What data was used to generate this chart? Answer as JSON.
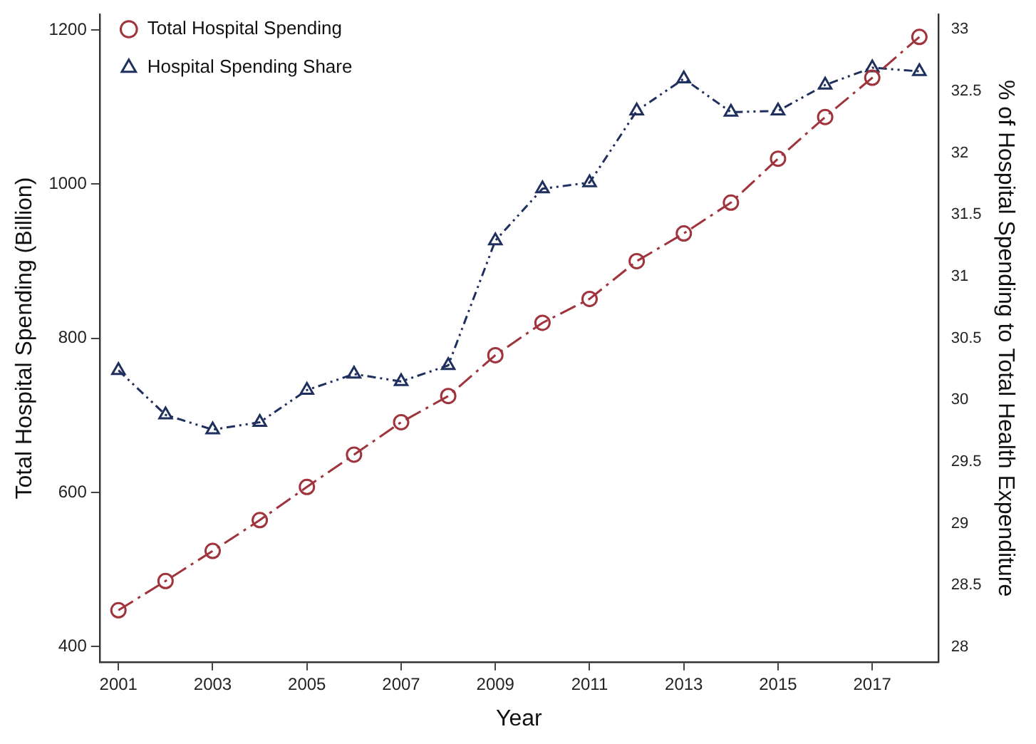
{
  "chart_data": {
    "type": "line",
    "xlabel": "Year",
    "ylabel": "Total Hospital Spending (Billion)",
    "y2label": "% of Hospital Spending to Total Health Expenditure",
    "x": [
      2001,
      2002,
      2003,
      2004,
      2005,
      2006,
      2007,
      2008,
      2009,
      2010,
      2011,
      2012,
      2013,
      2014,
      2015,
      2016,
      2017,
      2018
    ],
    "series": [
      {
        "name": "Total Hospital Spending",
        "color": "#a0343c",
        "marker": "circle",
        "line_style": "dashed",
        "values": [
          447,
          485,
          524,
          564,
          607,
          649,
          691,
          725,
          778,
          820,
          851,
          900,
          936,
          976,
          1033,
          1087,
          1138,
          1191
        ]
      },
      {
        "name": "Hospital Spending Share",
        "color": "#1f2f5e",
        "marker": "triangle",
        "line_style": "dotted",
        "axis": "y2",
        "values": [
          30.24,
          29.88,
          29.76,
          29.82,
          30.08,
          30.21,
          30.15,
          30.28,
          31.29,
          31.71,
          31.76,
          32.34,
          32.6,
          32.33,
          32.34,
          32.55,
          32.69,
          32.66
        ]
      }
    ],
    "xlim": [
      2000.6,
      2018.4
    ],
    "xticks": [
      2001,
      2003,
      2005,
      2007,
      2009,
      2011,
      2013,
      2015,
      2017
    ],
    "ylim": [
      380,
      1220
    ],
    "yticks": [
      400,
      600,
      800,
      1000,
      1200
    ],
    "y2lim": [
      27.88,
      33.12
    ],
    "y2ticks": [
      28,
      28.5,
      29,
      29.5,
      30,
      30.5,
      31,
      31.5,
      32,
      32.5,
      33
    ],
    "grid": false,
    "legend": "top left"
  }
}
